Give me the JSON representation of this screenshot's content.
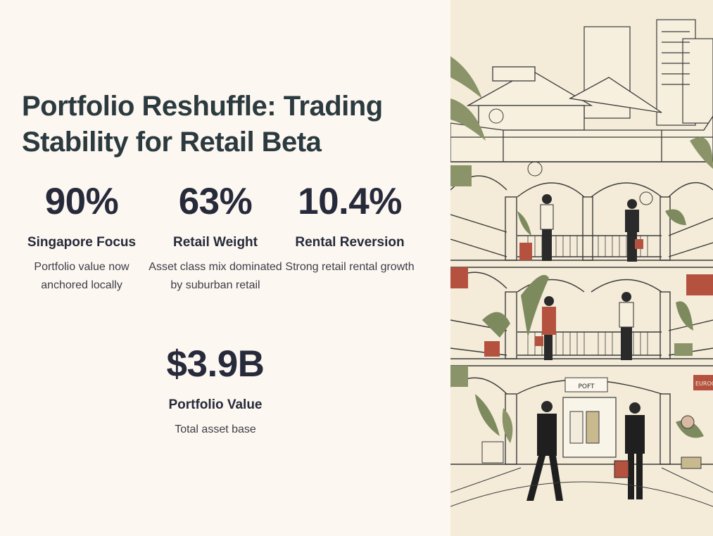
{
  "title": "Portfolio Reshuffle: Trading Stability for Retail Beta",
  "stats": [
    {
      "value": "90%",
      "label": "Singapore Focus",
      "desc": "Portfolio value now anchored locally"
    },
    {
      "value": "63%",
      "label": "Retail Weight",
      "desc": "Asset class mix dominated by suburban retail"
    },
    {
      "value": "10.4%",
      "label": "Rental Reversion",
      "desc": "Strong retail rental growth"
    },
    {
      "value": "$3.9B",
      "label": "Portfolio Value",
      "desc": "Total asset base"
    }
  ],
  "illustration": {
    "shop_sign": "POFT",
    "side_sign": "EUROC"
  },
  "colors": {
    "background": "#fdf7f1",
    "text": "#262a3a",
    "illustration_bg": "#f4ecd9",
    "accent_red": "#b5523f",
    "accent_green": "#7d8a5e"
  }
}
